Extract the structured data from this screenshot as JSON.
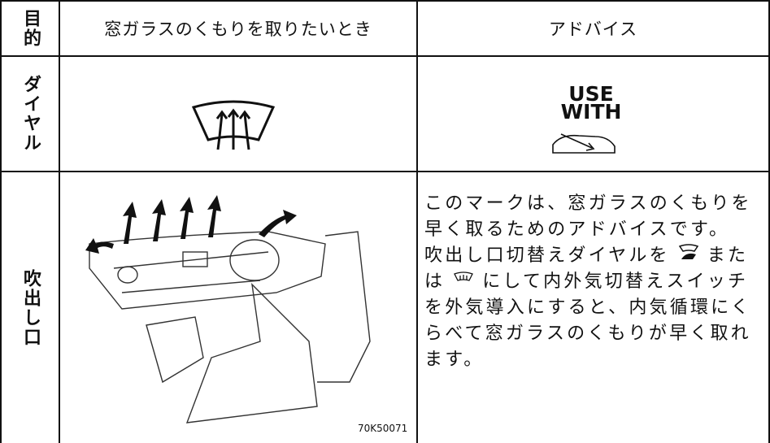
{
  "table": {
    "header": {
      "purpose": "目的",
      "case": "窓ガラスのくもりを取りたいとき",
      "advice": "アドバイス"
    },
    "dial_row": {
      "label": "ダイヤル",
      "use_with": [
        "USE",
        "WITH"
      ]
    },
    "vent_row": {
      "label": "吹出し口",
      "figure_code": "70K50071",
      "text_lines": [
        [
          "このマークは、窓ガラスのくもりを"
        ],
        [
          "早く取るためのアドバイスです。"
        ],
        [
          "吹出し口切替えダイヤルを",
          "また"
        ],
        [
          "は",
          "にして内外気切替えスイッチ"
        ],
        [
          "を外気導入にすると、内気循環にく"
        ],
        [
          "らべて窓ガラスのくもりが早く取れ"
        ],
        [
          "ます。"
        ]
      ]
    }
  }
}
